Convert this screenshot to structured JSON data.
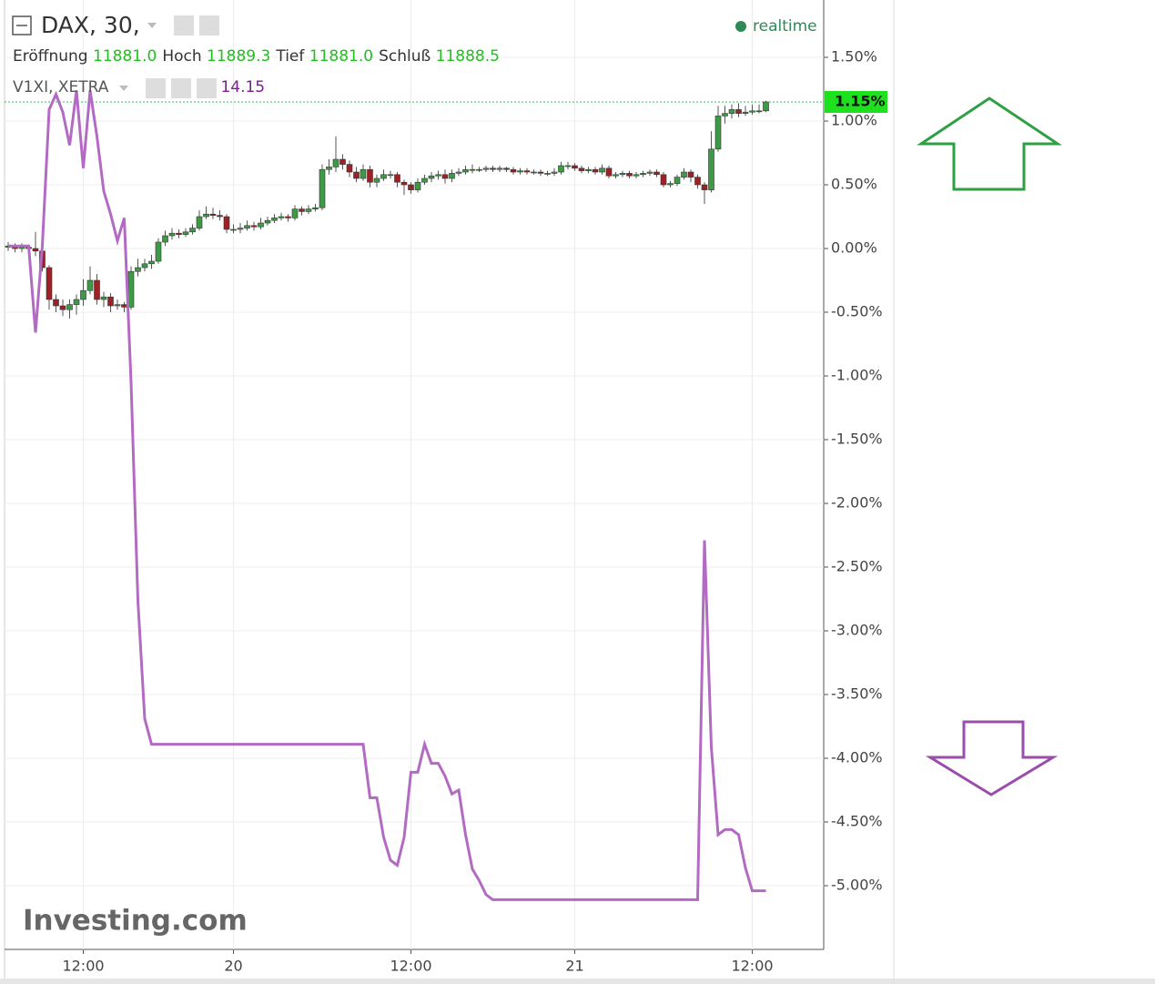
{
  "chart_data": {
    "type": "candlestick",
    "title": "DAX, 30,",
    "status": "realtime",
    "watermark": "Investing.com",
    "fields": [
      {
        "name": "Eröffnung",
        "value": "11881.0"
      },
      {
        "name": "Hoch",
        "value": "11889.3"
      },
      {
        "name": "Tief",
        "value": "11881.0"
      },
      {
        "name": "Schluß",
        "value": "11888.5"
      }
    ],
    "categories": [
      null,
      null,
      null,
      null,
      null,
      null,
      null,
      null,
      null,
      null,
      null,
      "12:00",
      null,
      null,
      null,
      null,
      null,
      null,
      null,
      null,
      null,
      null,
      null,
      null,
      null,
      null,
      null,
      null,
      null,
      null,
      null,
      null,
      null,
      "20",
      null,
      null,
      null,
      null,
      null,
      null,
      null,
      null,
      null,
      null,
      null,
      null,
      null,
      null,
      null,
      null,
      null,
      null,
      null,
      null,
      null,
      null,
      null,
      null,
      null,
      "12:00",
      null,
      null,
      null,
      null,
      null,
      null,
      null,
      null,
      null,
      null,
      null,
      null,
      null,
      null,
      null,
      null,
      null,
      null,
      null,
      null,
      null,
      null,
      null,
      "21",
      null,
      null,
      null,
      null,
      null,
      null,
      null,
      null,
      null,
      null,
      null,
      null,
      null,
      null,
      null,
      null,
      null,
      null,
      null,
      null,
      null,
      null,
      null,
      null,
      null,
      "12:00",
      null,
      null
    ],
    "ylim": [
      -5.5,
      1.95
    ],
    "yticks": [
      {
        "value": 1.5,
        "label": "1.50%"
      },
      {
        "value": 1.0,
        "label": "1.00%"
      },
      {
        "value": 0.5,
        "label": "0.50%"
      },
      {
        "value": 0,
        "label": "0.00%"
      },
      {
        "value": -0.5,
        "label": "-0.50%"
      },
      {
        "value": -1.0,
        "label": "-1.00%"
      },
      {
        "value": -1.5,
        "label": "-1.50%"
      },
      {
        "value": -2.0,
        "label": "-2.00%"
      },
      {
        "value": -2.5,
        "label": "-2.50%"
      },
      {
        "value": -3.0,
        "label": "-3.00%"
      },
      {
        "value": -3.5,
        "label": "-3.50%"
      },
      {
        "value": -4.0,
        "label": "-4.00%"
      },
      {
        "value": -4.5,
        "label": "-4.50%"
      },
      {
        "value": -5.0,
        "label": "-5.00%"
      }
    ],
    "grid": true,
    "last_price": {
      "value": 1.15,
      "label": "1.15%"
    },
    "series": [
      {
        "name": "DAX, 30,",
        "type": "candlestick",
        "up_color": "#3d9b46",
        "down_color": "#9b2226",
        "values": [
          [
            0.01,
            0.05,
            -0.02,
            0.02
          ],
          [
            0.02,
            0.04,
            -0.03,
            0.0
          ],
          [
            0.0,
            0.04,
            -0.03,
            0.01
          ],
          [
            0.01,
            0.03,
            -0.05,
            0.0
          ],
          [
            0.0,
            0.13,
            -0.06,
            -0.02
          ],
          [
            -0.02,
            0.0,
            -0.18,
            -0.15
          ],
          [
            -0.15,
            -0.13,
            -0.48,
            -0.4
          ],
          [
            -0.4,
            -0.36,
            -0.5,
            -0.45
          ],
          [
            -0.45,
            -0.4,
            -0.53,
            -0.48
          ],
          [
            -0.48,
            -0.4,
            -0.55,
            -0.44
          ],
          [
            -0.44,
            -0.36,
            -0.52,
            -0.4
          ],
          [
            -0.4,
            -0.24,
            -0.45,
            -0.33
          ],
          [
            -0.33,
            -0.14,
            -0.36,
            -0.25
          ],
          [
            -0.25,
            -0.2,
            -0.44,
            -0.4
          ],
          [
            -0.4,
            -0.34,
            -0.46,
            -0.38
          ],
          [
            -0.38,
            -0.35,
            -0.5,
            -0.45
          ],
          [
            -0.45,
            -0.4,
            -0.48,
            -0.44
          ],
          [
            -0.44,
            -0.42,
            -0.5,
            -0.46
          ],
          [
            -0.46,
            -0.14,
            -0.48,
            -0.18
          ],
          [
            -0.18,
            -0.08,
            -0.22,
            -0.15
          ],
          [
            -0.15,
            -0.08,
            -0.18,
            -0.12
          ],
          [
            -0.12,
            -0.05,
            -0.16,
            -0.1
          ],
          [
            -0.1,
            0.08,
            -0.12,
            0.05
          ],
          [
            0.05,
            0.14,
            0.02,
            0.1
          ],
          [
            0.1,
            0.16,
            0.07,
            0.12
          ],
          [
            0.12,
            0.15,
            0.08,
            0.11
          ],
          [
            0.11,
            0.16,
            0.09,
            0.13
          ],
          [
            0.13,
            0.19,
            0.11,
            0.16
          ],
          [
            0.16,
            0.3,
            0.14,
            0.25
          ],
          [
            0.25,
            0.33,
            0.23,
            0.27
          ],
          [
            0.27,
            0.32,
            0.23,
            0.26
          ],
          [
            0.26,
            0.3,
            0.22,
            0.25
          ],
          [
            0.25,
            0.27,
            0.12,
            0.15
          ],
          [
            0.15,
            0.19,
            0.12,
            0.15
          ],
          [
            0.15,
            0.2,
            0.12,
            0.16
          ],
          [
            0.16,
            0.22,
            0.14,
            0.18
          ],
          [
            0.18,
            0.21,
            0.14,
            0.17
          ],
          [
            0.17,
            0.24,
            0.15,
            0.2
          ],
          [
            0.2,
            0.25,
            0.18,
            0.22
          ],
          [
            0.22,
            0.27,
            0.2,
            0.24
          ],
          [
            0.24,
            0.28,
            0.22,
            0.25
          ],
          [
            0.25,
            0.27,
            0.21,
            0.24
          ],
          [
            0.24,
            0.34,
            0.22,
            0.31
          ],
          [
            0.31,
            0.33,
            0.26,
            0.29
          ],
          [
            0.29,
            0.34,
            0.27,
            0.31
          ],
          [
            0.31,
            0.35,
            0.29,
            0.32
          ],
          [
            0.32,
            0.66,
            0.3,
            0.62
          ],
          [
            0.62,
            0.7,
            0.58,
            0.64
          ],
          [
            0.64,
            0.88,
            0.6,
            0.7
          ],
          [
            0.7,
            0.74,
            0.62,
            0.66
          ],
          [
            0.66,
            0.69,
            0.56,
            0.6
          ],
          [
            0.6,
            0.64,
            0.52,
            0.55
          ],
          [
            0.55,
            0.66,
            0.53,
            0.62
          ],
          [
            0.62,
            0.65,
            0.48,
            0.52
          ],
          [
            0.52,
            0.58,
            0.48,
            0.55
          ],
          [
            0.55,
            0.62,
            0.53,
            0.58
          ],
          [
            0.58,
            0.61,
            0.55,
            0.58
          ],
          [
            0.58,
            0.6,
            0.48,
            0.52
          ],
          [
            0.52,
            0.54,
            0.42,
            0.5
          ],
          [
            0.5,
            0.52,
            0.43,
            0.46
          ],
          [
            0.46,
            0.55,
            0.44,
            0.52
          ],
          [
            0.52,
            0.58,
            0.5,
            0.55
          ],
          [
            0.55,
            0.6,
            0.52,
            0.57
          ],
          [
            0.57,
            0.61,
            0.54,
            0.58
          ],
          [
            0.58,
            0.62,
            0.51,
            0.55
          ],
          [
            0.55,
            0.62,
            0.52,
            0.59
          ],
          [
            0.59,
            0.63,
            0.57,
            0.6
          ],
          [
            0.6,
            0.65,
            0.58,
            0.62
          ],
          [
            0.62,
            0.66,
            0.59,
            0.62
          ],
          [
            0.62,
            0.64,
            0.6,
            0.62
          ],
          [
            0.62,
            0.65,
            0.6,
            0.63
          ],
          [
            0.63,
            0.65,
            0.6,
            0.62
          ],
          [
            0.62,
            0.65,
            0.6,
            0.63
          ],
          [
            0.63,
            0.64,
            0.6,
            0.62
          ],
          [
            0.62,
            0.64,
            0.58,
            0.6
          ],
          [
            0.6,
            0.63,
            0.58,
            0.61
          ],
          [
            0.61,
            0.63,
            0.58,
            0.6
          ],
          [
            0.6,
            0.62,
            0.58,
            0.6
          ],
          [
            0.6,
            0.62,
            0.57,
            0.59
          ],
          [
            0.59,
            0.61,
            0.57,
            0.59
          ],
          [
            0.59,
            0.63,
            0.57,
            0.6
          ],
          [
            0.6,
            0.68,
            0.58,
            0.65
          ],
          [
            0.65,
            0.68,
            0.62,
            0.65
          ],
          [
            0.65,
            0.67,
            0.61,
            0.63
          ],
          [
            0.63,
            0.65,
            0.59,
            0.61
          ],
          [
            0.61,
            0.64,
            0.59,
            0.62
          ],
          [
            0.62,
            0.64,
            0.58,
            0.6
          ],
          [
            0.6,
            0.66,
            0.58,
            0.63
          ],
          [
            0.63,
            0.65,
            0.55,
            0.57
          ],
          [
            0.57,
            0.6,
            0.55,
            0.58
          ],
          [
            0.58,
            0.61,
            0.56,
            0.59
          ],
          [
            0.59,
            0.61,
            0.55,
            0.57
          ],
          [
            0.57,
            0.6,
            0.55,
            0.58
          ],
          [
            0.58,
            0.61,
            0.56,
            0.59
          ],
          [
            0.59,
            0.62,
            0.57,
            0.6
          ],
          [
            0.6,
            0.62,
            0.56,
            0.58
          ],
          [
            0.58,
            0.6,
            0.48,
            0.5
          ],
          [
            0.5,
            0.53,
            0.48,
            0.51
          ],
          [
            0.51,
            0.58,
            0.49,
            0.56
          ],
          [
            0.56,
            0.63,
            0.54,
            0.6
          ],
          [
            0.6,
            0.62,
            0.52,
            0.56
          ],
          [
            0.56,
            0.58,
            0.47,
            0.5
          ],
          [
            0.5,
            0.52,
            0.35,
            0.46
          ],
          [
            0.46,
            0.92,
            0.44,
            0.78
          ],
          [
            0.78,
            1.12,
            0.76,
            1.04
          ],
          [
            1.04,
            1.12,
            0.98,
            1.06
          ],
          [
            1.06,
            1.13,
            1.02,
            1.09
          ],
          [
            1.09,
            1.14,
            1.03,
            1.06
          ],
          [
            1.06,
            1.12,
            1.04,
            1.07
          ],
          [
            1.07,
            1.13,
            1.05,
            1.08
          ],
          [
            1.08,
            1.13,
            1.06,
            1.08
          ],
          [
            1.08,
            1.16,
            1.07,
            1.15
          ]
        ]
      },
      {
        "name": "V1XI, XETRA",
        "type": "line",
        "color": "#b36ac3",
        "price": 14.15,
        "values": [
          0.02,
          0.02,
          0.02,
          0.02,
          -0.66,
          0.02,
          1.09,
          1.21,
          1.07,
          0.81,
          1.24,
          0.63,
          1.24,
          0.88,
          0.45,
          0.27,
          0.06,
          0.24,
          -1.05,
          -2.76,
          -3.69,
          -3.89,
          -3.89,
          -3.89,
          -3.89,
          -3.89,
          -3.89,
          -3.89,
          -3.89,
          -3.89,
          -3.89,
          -3.89,
          -3.89,
          -3.89,
          -3.89,
          -3.89,
          -3.89,
          -3.89,
          -3.89,
          -3.89,
          -3.89,
          -3.89,
          -3.89,
          -3.89,
          -3.89,
          -3.89,
          -3.89,
          -3.89,
          -3.89,
          -3.89,
          -3.89,
          -3.89,
          -3.89,
          -4.31,
          -4.31,
          -4.62,
          -4.8,
          -4.84,
          -4.62,
          -4.11,
          -4.11,
          -3.89,
          -4.04,
          -4.04,
          -4.14,
          -4.28,
          -4.25,
          -4.6,
          -4.87,
          -4.96,
          -5.07,
          -5.11,
          -5.11,
          -5.11,
          -5.11,
          -5.11,
          -5.11,
          -5.11,
          -5.11,
          -5.11,
          -5.11,
          -5.11,
          -5.11,
          -5.11,
          -5.11,
          -5.11,
          -5.11,
          -5.11,
          -5.11,
          -5.11,
          -5.11,
          -5.11,
          -5.11,
          -5.11,
          -5.11,
          -5.11,
          -5.11,
          -5.11,
          -5.11,
          -5.11,
          -5.11,
          -5.11,
          -2.29,
          -3.91,
          -4.6,
          -4.56,
          -4.56,
          -4.6,
          -4.86,
          -5.04,
          -5.04,
          -5.04
        ]
      }
    ]
  }
}
